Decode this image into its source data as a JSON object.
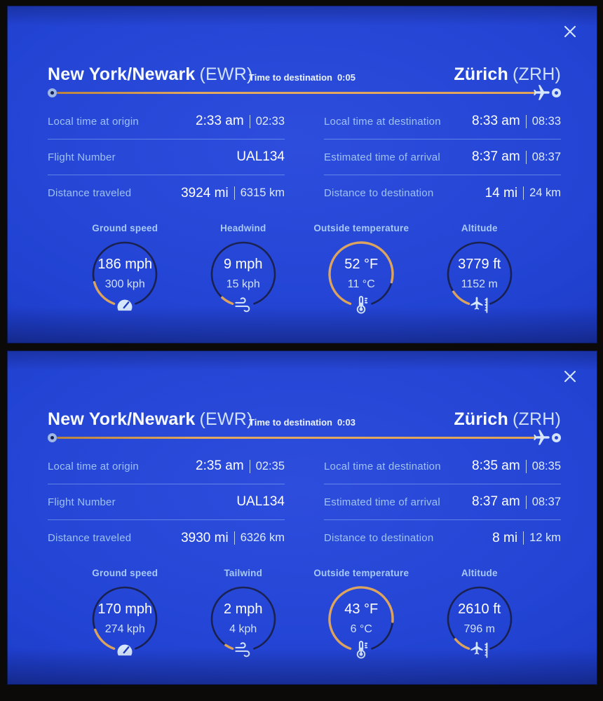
{
  "colors": {
    "background_blue": "#2041d2",
    "accent_orange": "#dfa155",
    "label_blue": "#9cc0f2",
    "value_white": "#ffffff",
    "ring_navy": "#161e4e",
    "icon_light_blue": "#d6e6fb"
  },
  "panels": [
    {
      "origin": {
        "city": "New York/Newark",
        "code": "(EWR)"
      },
      "destination": {
        "city": "Zürich",
        "code": "(ZRH)"
      },
      "time_to_destination": {
        "label": "Time to destination",
        "value": "0:05"
      },
      "rows_left": [
        {
          "label": "Local time at origin",
          "value": "2:33 am",
          "alt": "02:33"
        },
        {
          "label": "Flight Number",
          "value": "UAL134",
          "alt": ""
        },
        {
          "label": "Distance traveled",
          "value": "3924 mi",
          "alt": "6315 km"
        }
      ],
      "rows_right": [
        {
          "label": "Local time at destination",
          "value": "8:33 am",
          "alt": "08:33"
        },
        {
          "label": "Estimated time of arrival",
          "value": "8:37 am",
          "alt": "08:37"
        },
        {
          "label": "Distance to destination",
          "value": "14 mi",
          "alt": "24 km"
        }
      ],
      "gauges": [
        {
          "title": "Ground speed",
          "primary": "186 mph",
          "secondary": "300 kph",
          "icon": "speedometer-icon",
          "arc_deg": 55
        },
        {
          "title": "Headwind",
          "primary": "9 mph",
          "secondary": "15 kph",
          "icon": "wind-icon",
          "arc_deg": 22
        },
        {
          "title": "Outside temperature",
          "primary": "52 °F",
          "secondary": "11 °C",
          "icon": "thermometer-icon",
          "arc_deg": 265
        },
        {
          "title": "Altitude",
          "primary": "3779 ft",
          "secondary": "1152 m",
          "icon": "altitude-icon",
          "arc_deg": 36
        }
      ]
    },
    {
      "origin": {
        "city": "New York/Newark",
        "code": "(EWR)"
      },
      "destination": {
        "city": "Zürich",
        "code": "(ZRH)"
      },
      "time_to_destination": {
        "label": "Time to destination",
        "value": "0:03"
      },
      "rows_left": [
        {
          "label": "Local time at origin",
          "value": "2:35 am",
          "alt": "02:35"
        },
        {
          "label": "Flight Number",
          "value": "UAL134",
          "alt": ""
        },
        {
          "label": "Distance traveled",
          "value": "3930 mi",
          "alt": "6326 km"
        }
      ],
      "rows_right": [
        {
          "label": "Local time at destination",
          "value": "8:35 am",
          "alt": "08:35"
        },
        {
          "label": "Estimated time of arrival",
          "value": "8:37 am",
          "alt": "08:37"
        },
        {
          "label": "Distance to destination",
          "value": "8 mi",
          "alt": "12 km"
        }
      ],
      "gauges": [
        {
          "title": "Ground speed",
          "primary": "170 mph",
          "secondary": "274 kph",
          "icon": "speedometer-icon",
          "arc_deg": 50
        },
        {
          "title": "Tailwind",
          "primary": "2 mph",
          "secondary": "4 kph",
          "icon": "wind-icon",
          "arc_deg": 14
        },
        {
          "title": "Outside temperature",
          "primary": "43 °F",
          "secondary": "6 °C",
          "icon": "thermometer-icon",
          "arc_deg": 255
        },
        {
          "title": "Altitude",
          "primary": "2610 ft",
          "secondary": "796 m",
          "icon": "altitude-icon",
          "arc_deg": 30
        }
      ]
    }
  ]
}
